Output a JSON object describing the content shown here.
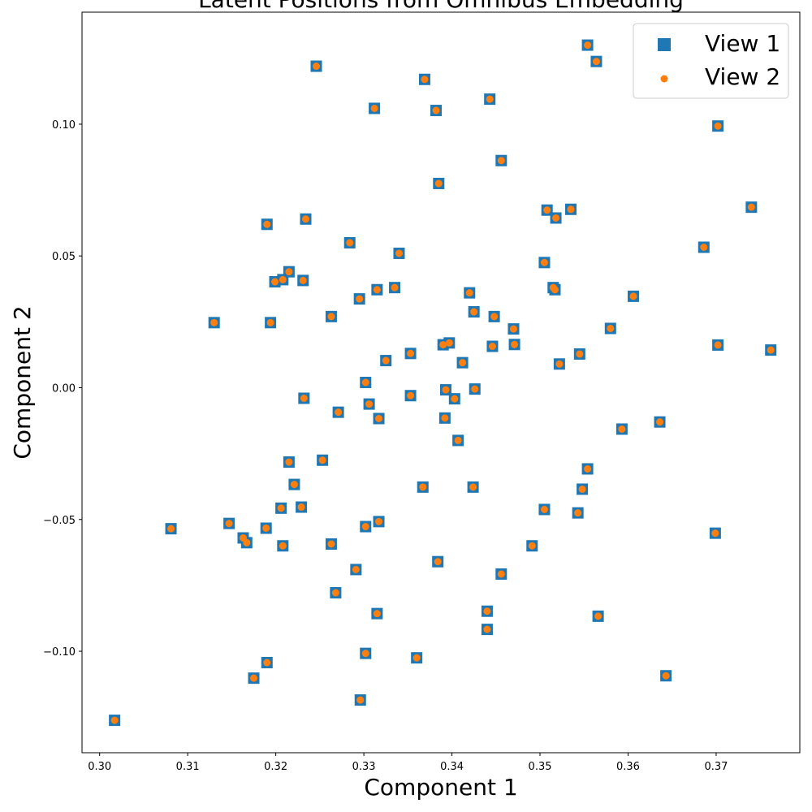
{
  "chart_data": {
    "type": "scatter",
    "title": "Latent Positions from Omnibus Embedding",
    "xlabel": "Component 1",
    "ylabel": "Component 2",
    "xlim": [
      0.298,
      0.3795
    ],
    "ylim": [
      -0.1385,
      0.1425
    ],
    "xticks": [
      0.3,
      0.31,
      0.32,
      0.33,
      0.34,
      0.35,
      0.36,
      0.37
    ],
    "xtick_labels": [
      "0.30",
      "0.31",
      "0.32",
      "0.33",
      "0.34",
      "0.35",
      "0.36",
      "0.37"
    ],
    "yticks": [
      0.1,
      0.05,
      0.0,
      -0.05,
      -0.1
    ],
    "ytick_labels": [
      "0.10",
      "0.05",
      "0.00",
      "−0.05",
      "−0.10"
    ],
    "grid": false,
    "legend_position": "top-right",
    "series": [
      {
        "name": "View 1",
        "marker": "square",
        "color": "#1f77b4"
      },
      {
        "name": "View 2",
        "marker": "circle",
        "color": "#ff7f0e"
      }
    ],
    "points": [
      [
        0.3554,
        0.13
      ],
      [
        0.3564,
        0.1238
      ],
      [
        0.3246,
        0.122
      ],
      [
        0.3369,
        0.117
      ],
      [
        0.3443,
        0.1095
      ],
      [
        0.3312,
        0.106
      ],
      [
        0.3382,
        0.1052
      ],
      [
        0.3702,
        0.0993
      ],
      [
        0.3456,
        0.0862
      ],
      [
        0.3385,
        0.0775
      ],
      [
        0.374,
        0.0685
      ],
      [
        0.3535,
        0.0677
      ],
      [
        0.3508,
        0.0674
      ],
      [
        0.3518,
        0.0644
      ],
      [
        0.3234,
        0.064
      ],
      [
        0.319,
        0.062
      ],
      [
        0.3686,
        0.0533
      ],
      [
        0.3284,
        0.055
      ],
      [
        0.334,
        0.051
      ],
      [
        0.3505,
        0.0475
      ],
      [
        0.3215,
        0.044
      ],
      [
        0.3208,
        0.041
      ],
      [
        0.3199,
        0.0402
      ],
      [
        0.3231,
        0.0407
      ],
      [
        0.3335,
        0.038
      ],
      [
        0.3315,
        0.0372
      ],
      [
        0.3515,
        0.038
      ],
      [
        0.3517,
        0.0372
      ],
      [
        0.342,
        0.036
      ],
      [
        0.3295,
        0.0337
      ],
      [
        0.3606,
        0.0347
      ],
      [
        0.3425,
        0.0288
      ],
      [
        0.3263,
        0.027
      ],
      [
        0.3448,
        0.027
      ],
      [
        0.313,
        0.0247
      ],
      [
        0.3194,
        0.0247
      ],
      [
        0.347,
        0.0223
      ],
      [
        0.358,
        0.0225
      ],
      [
        0.3397,
        0.017
      ],
      [
        0.339,
        0.0163
      ],
      [
        0.3471,
        0.0164
      ],
      [
        0.3702,
        0.0162
      ],
      [
        0.3762,
        0.0143
      ],
      [
        0.3446,
        0.0157
      ],
      [
        0.3353,
        0.013
      ],
      [
        0.3545,
        0.0128
      ],
      [
        0.3325,
        0.0103
      ],
      [
        0.3412,
        0.0095
      ],
      [
        0.3522,
        0.009
      ],
      [
        0.3302,
        0.002
      ],
      [
        0.3393,
        -0.0008
      ],
      [
        0.3426,
        -0.0005
      ],
      [
        0.3232,
        -0.004
      ],
      [
        0.3353,
        -0.003
      ],
      [
        0.3403,
        -0.0042
      ],
      [
        0.3306,
        -0.0062
      ],
      [
        0.3271,
        -0.0093
      ],
      [
        0.3317,
        -0.0117
      ],
      [
        0.3392,
        -0.0115
      ],
      [
        0.3593,
        -0.0157
      ],
      [
        0.3636,
        -0.013
      ],
      [
        0.3407,
        -0.02
      ],
      [
        0.3253,
        -0.0275
      ],
      [
        0.3215,
        -0.0282
      ],
      [
        0.3554,
        -0.0308
      ],
      [
        0.3221,
        -0.0367
      ],
      [
        0.3367,
        -0.0377
      ],
      [
        0.3424,
        -0.0377
      ],
      [
        0.3548,
        -0.0385
      ],
      [
        0.3206,
        -0.0457
      ],
      [
        0.3229,
        -0.0453
      ],
      [
        0.3505,
        -0.0462
      ],
      [
        0.3543,
        -0.0475
      ],
      [
        0.3147,
        -0.0515
      ],
      [
        0.3317,
        -0.0508
      ],
      [
        0.3302,
        -0.0527
      ],
      [
        0.3081,
        -0.0535
      ],
      [
        0.3189,
        -0.0533
      ],
      [
        0.3699,
        -0.0552
      ],
      [
        0.3163,
        -0.057
      ],
      [
        0.3167,
        -0.0588
      ],
      [
        0.3208,
        -0.06
      ],
      [
        0.3263,
        -0.0593
      ],
      [
        0.3491,
        -0.06
      ],
      [
        0.3384,
        -0.066
      ],
      [
        0.3291,
        -0.069
      ],
      [
        0.3456,
        -0.0707
      ],
      [
        0.3268,
        -0.0778
      ],
      [
        0.3315,
        -0.0857
      ],
      [
        0.344,
        -0.0848
      ],
      [
        0.3566,
        -0.0867
      ],
      [
        0.344,
        -0.0917
      ],
      [
        0.3302,
        -0.1008
      ],
      [
        0.336,
        -0.1025
      ],
      [
        0.319,
        -0.1043
      ],
      [
        0.3643,
        -0.1093
      ],
      [
        0.3175,
        -0.1102
      ],
      [
        0.3296,
        -0.1185
      ],
      [
        0.3017,
        -0.1262
      ]
    ]
  }
}
